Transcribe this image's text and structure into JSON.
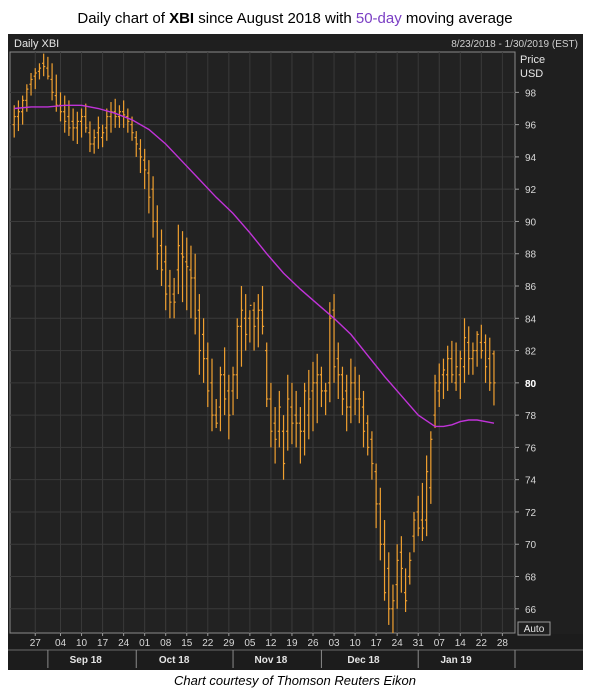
{
  "header": {
    "title_prefix": "Daily chart of ",
    "ticker": "XBI",
    "title_middle": " since August 2018 with ",
    "ma_label": "50-day",
    "title_suffix": " moving average"
  },
  "caption": "Chart courtesy of Thomson Reuters Eikon",
  "chart_data": {
    "type": "line",
    "panel_label": "Daily XBI",
    "date_range": "8/23/2018 - 1/30/2019 (EST)",
    "y_axis_title": "Price",
    "y_axis_unit": "USD",
    "auto_label": "Auto",
    "last_price_label": "80",
    "ylim": [
      64.5,
      100.5
    ],
    "y_ticks": [
      66,
      68,
      70,
      72,
      74,
      76,
      78,
      80,
      82,
      84,
      86,
      88,
      90,
      92,
      94,
      96,
      98
    ],
    "x_tick_labels": [
      {
        "t": 5,
        "label": "27"
      },
      {
        "t": 11,
        "label": "04"
      },
      {
        "t": 16,
        "label": "10"
      },
      {
        "t": 21,
        "label": "17"
      },
      {
        "t": 26,
        "label": "24"
      },
      {
        "t": 31,
        "label": "01"
      },
      {
        "t": 36,
        "label": "08"
      },
      {
        "t": 41,
        "label": "15"
      },
      {
        "t": 46,
        "label": "22"
      },
      {
        "t": 51,
        "label": "29"
      },
      {
        "t": 56,
        "label": "05"
      },
      {
        "t": 61,
        "label": "12"
      },
      {
        "t": 66,
        "label": "19"
      },
      {
        "t": 71,
        "label": "26"
      },
      {
        "t": 76,
        "label": "03"
      },
      {
        "t": 81,
        "label": "10"
      },
      {
        "t": 86,
        "label": "17"
      },
      {
        "t": 91,
        "label": "24"
      },
      {
        "t": 96,
        "label": "31"
      },
      {
        "t": 101,
        "label": "07"
      },
      {
        "t": 106,
        "label": "14"
      },
      {
        "t": 111,
        "label": "22"
      },
      {
        "t": 116,
        "label": "28"
      }
    ],
    "month_labels": [
      {
        "t": 17,
        "label": "Sep 18"
      },
      {
        "t": 38,
        "label": "Oct 18"
      },
      {
        "t": 61,
        "label": "Nov 18"
      },
      {
        "t": 83,
        "label": "Dec 18"
      },
      {
        "t": 105,
        "label": "Jan 19"
      }
    ],
    "month_separators": [
      8,
      29,
      52,
      73,
      96,
      119
    ],
    "series": [
      {
        "type": "ohlc",
        "color": "#f0a030",
        "t": [
          0,
          1,
          2,
          3,
          4,
          5,
          6,
          7,
          8,
          9,
          10,
          11,
          12,
          13,
          14,
          15,
          16,
          17,
          18,
          19,
          20,
          21,
          22,
          23,
          24,
          25,
          26,
          27,
          28,
          29,
          30,
          31,
          32,
          33,
          34,
          35,
          36,
          37,
          38,
          39,
          40,
          41,
          42,
          43,
          44,
          45,
          46,
          47,
          48,
          49,
          50,
          51,
          52,
          53,
          54,
          55,
          56,
          57,
          58,
          59,
          60,
          61,
          62,
          63,
          64,
          65,
          66,
          67,
          68,
          69,
          70,
          71,
          72,
          73,
          74,
          75,
          76,
          77,
          78,
          79,
          80,
          81,
          82,
          83,
          84,
          85,
          86,
          87,
          88,
          89,
          90,
          91,
          92,
          93,
          94,
          95,
          96,
          97,
          98,
          99,
          100,
          101,
          102,
          103,
          104,
          105,
          106,
          107,
          108,
          109,
          110,
          111,
          112,
          113,
          114
        ],
        "high": [
          97.2,
          97.5,
          97.8,
          98.5,
          99.2,
          99.5,
          99.8,
          100.4,
          100.2,
          99.8,
          99.1,
          98.0,
          97.8,
          97.5,
          97.0,
          96.8,
          97.0,
          97.3,
          96.2,
          95.7,
          96.5,
          96.0,
          97.0,
          97.4,
          97.6,
          97.2,
          97.5,
          97.0,
          96.5,
          95.6,
          95.1,
          94.5,
          93.8,
          92.8,
          91.0,
          89.5,
          88.5,
          87.0,
          86.5,
          89.8,
          89.4,
          89.0,
          88.5,
          88.0,
          85.5,
          84.0,
          82.5,
          81.5,
          79.0,
          81.0,
          82.2,
          80.5,
          81.0,
          84.0,
          86.0,
          85.5,
          84.5,
          85.0,
          85.5,
          86.0,
          82.5,
          80.0,
          78.5,
          79.5,
          78.0,
          80.5,
          80.0,
          79.5,
          78.5,
          80.0,
          80.8,
          81.3,
          81.8,
          81.0,
          80.0,
          85.0,
          85.5,
          82.5,
          81.0,
          80.5,
          81.5,
          81.0,
          80.5,
          79.5,
          78.0,
          77.0,
          75.0,
          73.5,
          71.5,
          69.5,
          67.5,
          70.0,
          70.5,
          68.5,
          69.5,
          72.0,
          73.0,
          73.8,
          75.5,
          77.0,
          80.5,
          81.2,
          81.5,
          82.3,
          82.6,
          82.5,
          82.0,
          84.0,
          83.5,
          82.5,
          83.2,
          83.6,
          83.0,
          82.8,
          82.0
        ],
        "low": [
          95.2,
          95.6,
          96.0,
          96.8,
          97.8,
          98.2,
          98.8,
          99.0,
          98.8,
          97.5,
          96.8,
          96.2,
          95.5,
          95.3,
          95.0,
          94.8,
          95.2,
          95.5,
          94.3,
          94.2,
          94.5,
          94.6,
          95.0,
          95.5,
          95.8,
          95.8,
          95.8,
          95.5,
          95.0,
          94.0,
          93.0,
          92.0,
          90.5,
          89.0,
          87.0,
          86.0,
          84.5,
          84.0,
          84.0,
          85.5,
          85.0,
          84.5,
          84.0,
          83.0,
          80.5,
          80.0,
          78.5,
          77.0,
          77.2,
          77.0,
          78.0,
          76.5,
          78.0,
          79.0,
          81.0,
          82.0,
          82.5,
          82.0,
          82.2,
          83.0,
          78.5,
          76.0,
          75.0,
          76.0,
          74.0,
          75.8,
          76.2,
          76.0,
          75.0,
          75.5,
          76.5,
          77.0,
          77.5,
          78.5,
          78.0,
          78.8,
          80.0,
          79.0,
          78.0,
          77.0,
          77.5,
          78.0,
          77.5,
          76.0,
          75.5,
          74.0,
          71.0,
          69.0,
          66.5,
          65.0,
          64.5,
          66.0,
          67.0,
          65.8,
          67.5,
          69.5,
          70.5,
          70.2,
          70.5,
          72.5,
          77.2,
          78.5,
          79.0,
          79.5,
          80.0,
          79.5,
          79.0,
          80.0,
          80.5,
          80.5,
          81.0,
          81.5,
          80.0,
          79.5,
          78.6
        ],
        "open": [
          96.0,
          96.5,
          96.8,
          97.5,
          98.5,
          99.0,
          99.3,
          99.8,
          99.5,
          98.8,
          97.8,
          97.2,
          96.8,
          96.5,
          96.2,
          95.8,
          96.2,
          96.5,
          95.5,
          94.8,
          95.5,
          95.2,
          95.8,
          96.5,
          96.8,
          96.5,
          96.8,
          96.5,
          96.0,
          95.2,
          94.5,
          93.8,
          93.0,
          92.0,
          90.0,
          88.5,
          87.5,
          86.0,
          85.5,
          87.0,
          88.0,
          87.5,
          87.0,
          86.5,
          84.5,
          83.0,
          81.5,
          80.0,
          78.0,
          78.5,
          80.5,
          79.5,
          79.5,
          80.5,
          83.5,
          84.0,
          84.0,
          84.5,
          84.0,
          84.5,
          82.0,
          79.0,
          77.5,
          77.0,
          77.0,
          77.0,
          78.5,
          78.0,
          77.5,
          77.0,
          78.0,
          79.5,
          80.0,
          80.5,
          79.5,
          80.0,
          84.5,
          81.5,
          80.5,
          79.5,
          78.5,
          80.0,
          79.0,
          78.5,
          77.5,
          76.5,
          74.5,
          72.5,
          70.0,
          68.5,
          66.0,
          67.5,
          69.5,
          67.0,
          68.0,
          70.5,
          72.0,
          71.5,
          71.5,
          73.5,
          78.0,
          79.5,
          80.5,
          80.5,
          81.5,
          80.0,
          80.5,
          81.0,
          82.5,
          81.5,
          82.0,
          82.5,
          82.5,
          81.5,
          81.8
        ],
        "close": [
          96.5,
          96.8,
          97.5,
          98.2,
          98.8,
          99.2,
          99.5,
          99.6,
          99.0,
          98.0,
          97.2,
          96.8,
          96.2,
          95.8,
          95.8,
          96.2,
          96.5,
          95.8,
          94.8,
          95.2,
          95.8,
          95.5,
          96.5,
          96.8,
          96.5,
          96.8,
          96.6,
          96.2,
          95.5,
          94.8,
          94.0,
          93.2,
          91.5,
          90.0,
          88.0,
          87.0,
          85.5,
          85.0,
          85.0,
          88.5,
          87.8,
          87.2,
          86.5,
          84.0,
          82.0,
          81.5,
          79.5,
          78.0,
          77.5,
          80.5,
          79.0,
          78.0,
          80.5,
          83.5,
          84.5,
          83.0,
          84.8,
          83.5,
          84.5,
          83.5,
          79.0,
          77.0,
          76.5,
          78.5,
          75.0,
          79.0,
          77.5,
          77.5,
          77.0,
          79.5,
          79.0,
          80.0,
          80.5,
          79.5,
          79.5,
          84.0,
          81.0,
          80.5,
          79.0,
          78.5,
          80.0,
          79.0,
          79.0,
          77.0,
          76.0,
          75.0,
          72.5,
          70.0,
          67.0,
          66.0,
          66.5,
          69.0,
          68.5,
          66.5,
          69.0,
          71.5,
          71.0,
          71.0,
          74.5,
          76.5,
          80.0,
          80.0,
          80.8,
          81.5,
          80.5,
          81.0,
          81.5,
          82.8,
          81.5,
          82.0,
          83.0,
          82.0,
          81.0,
          80.0,
          80.0
        ]
      },
      {
        "name": "50-day",
        "type": "line",
        "color": "#c033d8",
        "t": [
          0,
          4,
          8,
          12,
          16,
          20,
          24,
          28,
          32,
          36,
          40,
          44,
          48,
          52,
          56,
          60,
          64,
          68,
          72,
          76,
          80,
          84,
          88,
          92,
          96,
          100,
          102,
          104,
          106,
          108,
          110,
          112,
          114
        ],
        "value": [
          97.0,
          97.1,
          97.1,
          97.2,
          97.2,
          97.0,
          96.7,
          96.3,
          95.7,
          94.8,
          93.7,
          92.6,
          91.5,
          90.5,
          89.3,
          88.0,
          86.8,
          85.8,
          84.9,
          84.0,
          83.0,
          81.7,
          80.4,
          79.2,
          78.0,
          77.3,
          77.3,
          77.4,
          77.6,
          77.7,
          77.7,
          77.6,
          77.5
        ]
      }
    ],
    "x_domain": [
      -1,
      119
    ]
  }
}
